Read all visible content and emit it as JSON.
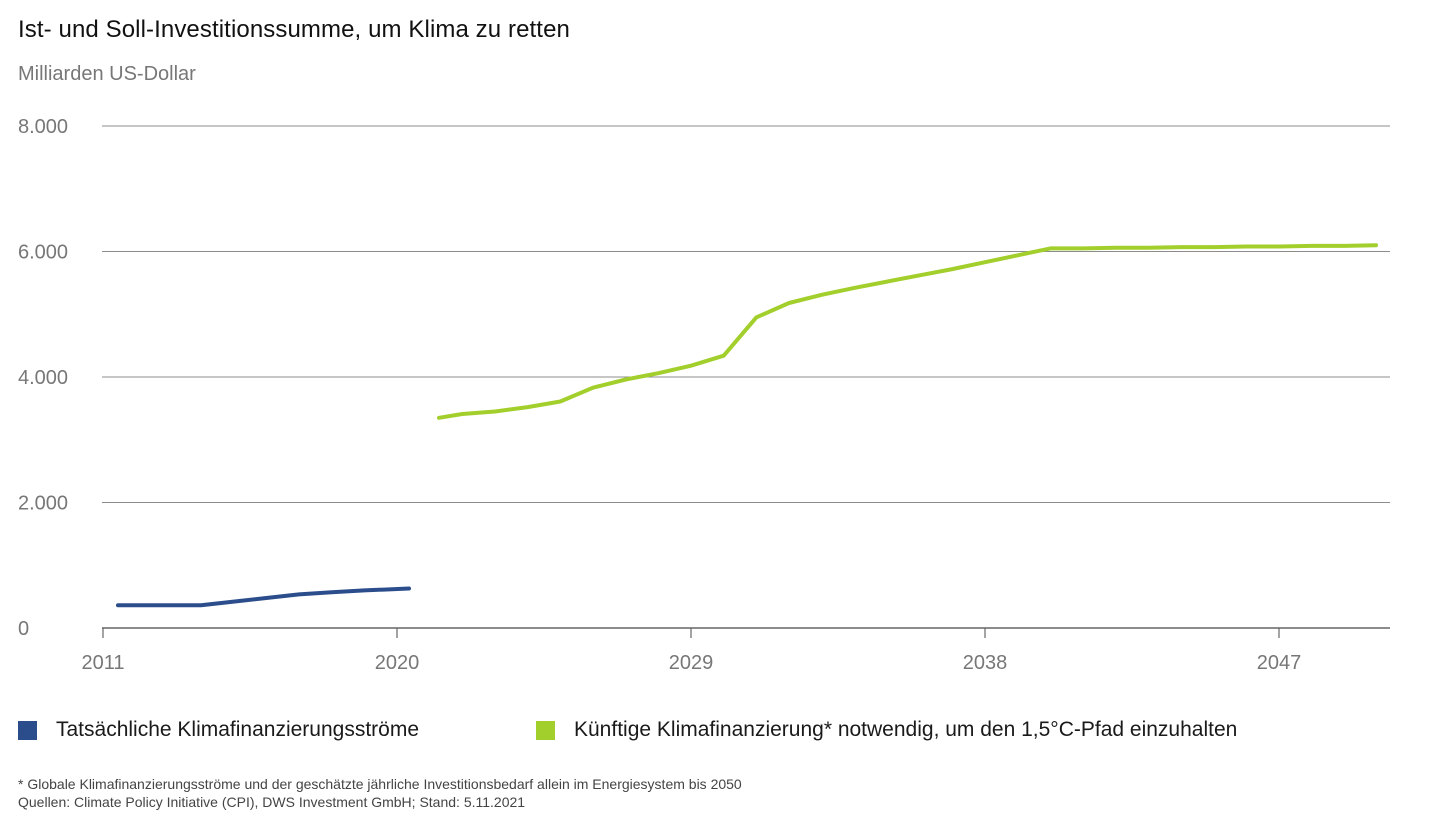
{
  "chart_data": {
    "type": "line",
    "title": "Ist- und Soll-Investitionssumme, um Klima zu retten",
    "subtitle": "Milliarden US-Dollar",
    "ylim": [
      0,
      8000
    ],
    "xlim": [
      2011,
      2050
    ],
    "y_ticks": [
      {
        "value": 0,
        "label": "0"
      },
      {
        "value": 2000,
        "label": "2.000"
      },
      {
        "value": 4000,
        "label": "4.000"
      },
      {
        "value": 6000,
        "label": "6.000"
      },
      {
        "value": 8000,
        "label": "8.000"
      }
    ],
    "x_ticks": [
      {
        "value": 2011,
        "label": "2011"
      },
      {
        "value": 2020,
        "label": "2020"
      },
      {
        "value": 2029,
        "label": "2029"
      },
      {
        "value": 2038,
        "label": "2038"
      },
      {
        "value": 2047,
        "label": "2047"
      }
    ],
    "grid": true,
    "legend_position": "bottom",
    "series": [
      {
        "name": "Tatsächliche Klimafinanzierungsströme",
        "color": "#2b4d8c",
        "x": [
          2011,
          2012,
          2013,
          2014,
          2015,
          2016,
          2017,
          2018,
          2019,
          2020
        ],
        "values": [
          364,
          364,
          364,
          364,
          420,
          478,
          535,
          570,
          600,
          630
        ]
      },
      {
        "name": "Künftige Klimafinanzierung* notwendig, um den 1,5°C-Pfad einzuhalten",
        "color": "#a3cf2c",
        "x": [
          2021,
          2022,
          2023,
          2024,
          2025,
          2026,
          2027,
          2028,
          2029,
          2030,
          2031,
          2032,
          2033,
          2034,
          2035,
          2036,
          2037,
          2038,
          2039,
          2040,
          2041,
          2042,
          2043,
          2044,
          2045,
          2046,
          2047,
          2048,
          2049,
          2050
        ],
        "values": [
          3350,
          3410,
          3450,
          3520,
          3610,
          3830,
          3960,
          4060,
          4180,
          4340,
          4950,
          5180,
          5310,
          5420,
          5520,
          5620,
          5720,
          5830,
          5940,
          6050,
          6050,
          6060,
          6060,
          6070,
          6070,
          6080,
          6080,
          6090,
          6090,
          6100
        ]
      }
    ]
  },
  "footnotes": {
    "line1": "* Globale Klimafinanzierungsströme und der geschätzte jährliche Investitionsbedarf allein im Energiesystem bis 2050",
    "line2": "Quellen: Climate Policy Initiative (CPI), DWS Investment GmbH; Stand: 5.11.2021"
  }
}
